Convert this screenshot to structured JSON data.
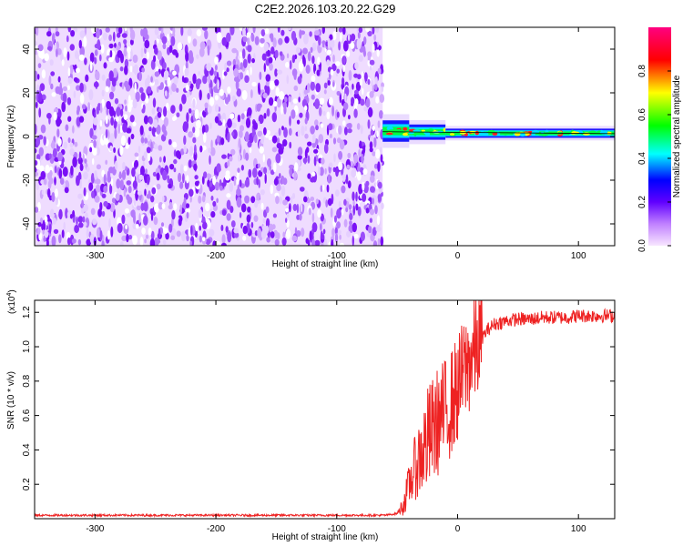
{
  "title": "C2E2.2026.103.20.22.G29",
  "chart_data": [
    {
      "type": "heatmap",
      "xlabel": "Height of straight line (km)",
      "ylabel": "Frequency (Hz)",
      "xlim": [
        -350,
        130
      ],
      "ylim": [
        -50,
        50
      ],
      "x_ticks": [
        -300,
        -200,
        -100,
        0,
        100
      ],
      "x_tick_labels": [
        "-300",
        "-200",
        "-100",
        "0",
        "100"
      ],
      "y_ticks": [
        -40,
        -20,
        0,
        20,
        40
      ],
      "y_tick_labels": [
        "-40",
        "-20",
        "0",
        "20",
        "40"
      ],
      "colorbar": {
        "label": "Normalized spectral amplitude",
        "range": [
          0,
          1
        ],
        "ticks": [
          0.0,
          0.2,
          0.4,
          0.6,
          0.8
        ],
        "tick_labels": [
          "0.0",
          "0.2",
          "0.4",
          "0.6",
          "0.8"
        ],
        "colors": [
          "#f4ccff",
          "#8000ff",
          "#0000ff",
          "#00ffff",
          "#00ff00",
          "#ffff00",
          "#ff0000",
          "#ff0080"
        ]
      },
      "noise_region_x": [
        -350,
        -62
      ],
      "signal_segments": [
        {
          "x": [
            -62,
            -40
          ],
          "frequency": 2.5,
          "width": 3.5
        },
        {
          "x": [
            -40,
            -10
          ],
          "frequency": 2,
          "width": 2.5
        },
        {
          "x": [
            -10,
            130
          ],
          "frequency": 1.5,
          "width": 1.5
        }
      ],
      "grid": false
    },
    {
      "type": "line",
      "xlabel": "Height of straight line (km)",
      "ylabel": "SNR (10 * v/v)",
      "y_multiplier": "(x10",
      "y_multiplier_exp": "4",
      "y_multiplier_close": ")",
      "xlim": [
        -350,
        130
      ],
      "ylim": [
        0,
        1.27
      ],
      "x_ticks": [
        -300,
        -200,
        -100,
        0,
        100
      ],
      "x_tick_labels": [
        "-300",
        "-200",
        "-100",
        "0",
        "100"
      ],
      "y_ticks": [
        0.2,
        0.4,
        0.6,
        0.8,
        1.0,
        1.2
      ],
      "y_tick_labels": [
        "0.2",
        "0.4",
        "0.6",
        "0.8",
        "1.0",
        "1.2"
      ],
      "series": [
        {
          "color": "#ee2222",
          "x": [
            -350,
            -300,
            -250,
            -200,
            -150,
            -100,
            -60,
            -50,
            -45,
            -40,
            -35,
            -30,
            -25,
            -20,
            -15,
            -10,
            -5,
            0,
            5,
            10,
            15,
            20,
            25,
            30,
            40,
            50,
            60,
            70,
            80,
            90,
            100,
            110,
            120,
            130
          ],
          "values": [
            0.02,
            0.02,
            0.02,
            0.02,
            0.02,
            0.02,
            0.02,
            0.03,
            0.08,
            0.2,
            0.3,
            0.38,
            0.45,
            0.52,
            0.58,
            0.62,
            0.68,
            0.75,
            0.85,
            0.92,
            0.98,
            1.05,
            1.1,
            1.13,
            1.15,
            1.16,
            1.16,
            1.17,
            1.17,
            1.17,
            1.18,
            1.18,
            1.18,
            1.18
          ]
        }
      ],
      "grid": false
    }
  ]
}
